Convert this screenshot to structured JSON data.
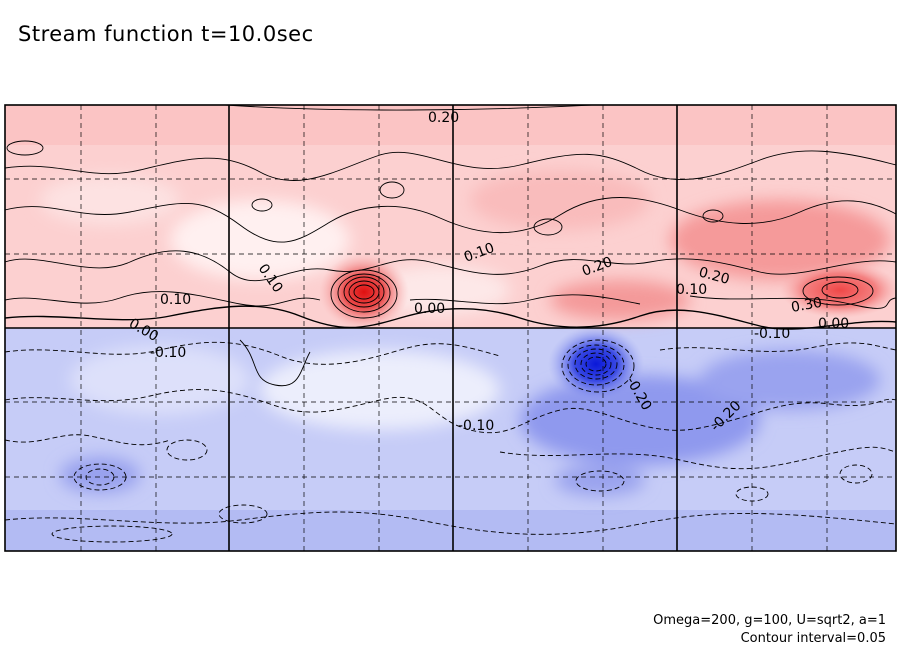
{
  "title": "Stream function t=10.0sec",
  "params_note": "Omega=200, g=100, U=sqrt2, a=1",
  "interval_note": "Contour interval=0.05",
  "chart_data": {
    "type": "heatmap",
    "title": "Stream function t=10.0sec",
    "xlabel": "",
    "ylabel": "",
    "contour_interval": 0.05,
    "colors": {
      "positive_light": "#fde4e4",
      "positive_mid": "#f6a8a8",
      "positive_strong": "#e02020",
      "negative_light": "#e6e8fb",
      "negative_mid": "#a8b0f2",
      "negative_strong": "#1a2ee0"
    },
    "grid": true,
    "contour_labels": [
      "0.20",
      "0.10",
      "0.10",
      "0.10",
      "0.00",
      "0.00",
      "0.20",
      "0.20",
      "0.10",
      "0.30",
      "-0.10",
      "0.00",
      "-0.10",
      "-0.20",
      "-0.10",
      "-0.20"
    ],
    "extrema": [
      {
        "sign": "positive",
        "strength": 0.55
      },
      {
        "sign": "positive",
        "strength": 0.38
      },
      {
        "sign": "negative",
        "strength": 0.6
      }
    ]
  }
}
